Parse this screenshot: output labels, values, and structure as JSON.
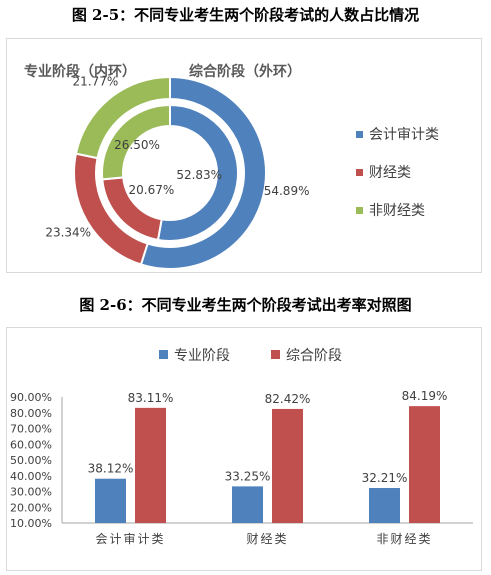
{
  "figure1": {
    "title": "图 2-5：不同专业考生两个阶段考试的人数占比情况",
    "chart_data": {
      "type": "donut",
      "subtitle_inner": "专业阶段（内环）",
      "subtitle_outer": "综合阶段（外环）",
      "categories": [
        "会计审计类",
        "财经类",
        "非财经类"
      ],
      "series": [
        {
          "name": "专业阶段（内环）",
          "values": [
            52.83,
            20.67,
            26.5
          ]
        },
        {
          "name": "综合阶段（外环）",
          "values": [
            54.89,
            23.34,
            21.77
          ]
        }
      ],
      "inner_labels": [
        "52.83%",
        "20.67%",
        "26.50%"
      ],
      "outer_labels": [
        "54.89%",
        "23.34%",
        "21.77%"
      ],
      "legend": [
        "会计审计类",
        "财经类",
        "非财经类"
      ],
      "legend_position": "right",
      "colors": [
        "#4f81bd",
        "#c0504d",
        "#9bbb59"
      ]
    }
  },
  "figure2": {
    "title": "图 2-6：不同专业考生两个阶段考试出考率对照图",
    "chart_data": {
      "type": "bar",
      "categories": [
        "会计审计类",
        "财经类",
        "非财经类"
      ],
      "series": [
        {
          "name": "专业阶段",
          "values": [
            38.12,
            33.25,
            32.21
          ],
          "labels": [
            "38.12%",
            "33.25%",
            "32.21%"
          ]
        },
        {
          "name": "综合阶段",
          "values": [
            83.11,
            82.42,
            84.19
          ],
          "labels": [
            "83.11%",
            "82.42%",
            "84.19%"
          ]
        }
      ],
      "ylim": [
        10,
        90
      ],
      "yticks": [
        "10.00%",
        "20.00%",
        "30.00%",
        "40.00%",
        "50.00%",
        "60.00%",
        "70.00%",
        "80.00%",
        "90.00%"
      ],
      "legend_position": "top",
      "grid": false,
      "colors": [
        "#4f81bd",
        "#c0504d"
      ]
    }
  }
}
